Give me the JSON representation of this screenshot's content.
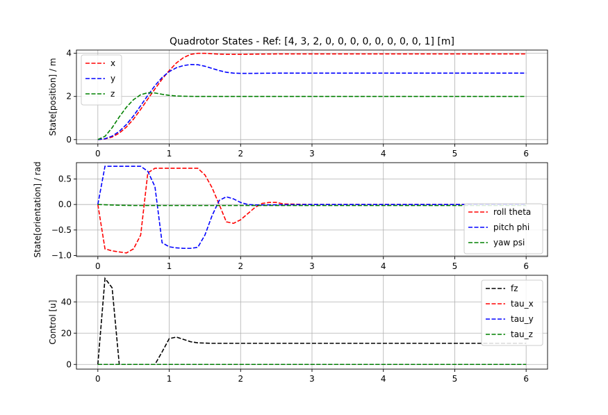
{
  "figure": {
    "title": "Quadrotor States - Ref: [4, 3, 2, 0, 0, 0, 0, 0, 0, 0, 0, 1] [m]"
  },
  "chart_data": [
    {
      "type": "line",
      "ylabel": "State[position] / m",
      "xlim": [
        -0.3,
        6.3
      ],
      "ylim": [
        -0.2,
        4.15
      ],
      "xticks": [
        0,
        1,
        2,
        3,
        4,
        5,
        6
      ],
      "yticks": [
        0,
        2,
        4
      ],
      "grid": true,
      "legend_position": "upper-left",
      "series": [
        {
          "name": "x",
          "color": "#ff0000",
          "x": [
            0,
            0.1,
            0.2,
            0.3,
            0.4,
            0.5,
            0.6,
            0.7,
            0.8,
            0.9,
            1.0,
            1.1,
            1.2,
            1.3,
            1.4,
            1.5,
            1.6,
            1.7,
            1.8,
            1.9,
            2.0,
            2.2,
            2.5,
            3.0,
            4.0,
            5.0,
            6.0
          ],
          "y": [
            0,
            0.03,
            0.12,
            0.3,
            0.58,
            0.95,
            1.4,
            1.88,
            2.35,
            2.8,
            3.2,
            3.55,
            3.8,
            3.95,
            4.0,
            4.0,
            3.98,
            3.96,
            3.95,
            3.95,
            3.95,
            3.96,
            3.97,
            3.97,
            3.97,
            3.97,
            3.97
          ]
        },
        {
          "name": "y",
          "color": "#0000ff",
          "x": [
            0,
            0.1,
            0.2,
            0.3,
            0.4,
            0.5,
            0.6,
            0.7,
            0.8,
            0.9,
            1.0,
            1.1,
            1.2,
            1.3,
            1.4,
            1.5,
            1.6,
            1.7,
            1.8,
            1.9,
            2.0,
            2.2,
            2.5,
            3.0,
            4.0,
            5.0,
            6.0
          ],
          "y": [
            0,
            0.04,
            0.16,
            0.38,
            0.7,
            1.1,
            1.57,
            2.05,
            2.5,
            2.88,
            3.15,
            3.33,
            3.43,
            3.48,
            3.47,
            3.4,
            3.3,
            3.2,
            3.12,
            3.08,
            3.07,
            3.07,
            3.08,
            3.08,
            3.08,
            3.08,
            3.08
          ]
        },
        {
          "name": "z",
          "color": "#008000",
          "x": [
            0,
            0.1,
            0.2,
            0.3,
            0.4,
            0.5,
            0.6,
            0.7,
            0.8,
            0.9,
            1.0,
            1.1,
            1.2,
            1.4,
            1.6,
            2.0,
            3.0,
            4.0,
            5.0,
            6.0
          ],
          "y": [
            0,
            0.15,
            0.55,
            1.05,
            1.5,
            1.85,
            2.08,
            2.17,
            2.16,
            2.1,
            2.05,
            2.02,
            2.01,
            2.0,
            2.0,
            2.0,
            2.0,
            2.0,
            2.0,
            2.0
          ]
        }
      ]
    },
    {
      "type": "line",
      "ylabel": "State[orientation] / rad",
      "xlim": [
        -0.3,
        6.3
      ],
      "ylim": [
        -1.02,
        0.82
      ],
      "xticks": [
        0,
        1,
        2,
        3,
        4,
        5,
        6
      ],
      "yticks": [
        0.5,
        0.0,
        -0.5,
        -1.0
      ],
      "ytick_labels": [
        "0.5",
        "0.0",
        "−0.5",
        "−1.0"
      ],
      "grid": true,
      "legend_position": "lower-right",
      "series": [
        {
          "name": "roll theta",
          "color": "#ff0000",
          "x": [
            0,
            0.1,
            0.2,
            0.3,
            0.4,
            0.5,
            0.6,
            0.7,
            0.8,
            0.9,
            1.0,
            1.1,
            1.2,
            1.3,
            1.4,
            1.5,
            1.6,
            1.7,
            1.8,
            1.9,
            2.0,
            2.1,
            2.2,
            2.3,
            2.4,
            2.5,
            2.6,
            3.0,
            4.0,
            5.0,
            6.0
          ],
          "y": [
            0,
            -0.87,
            -0.91,
            -0.93,
            -0.95,
            -0.87,
            -0.6,
            0.62,
            0.71,
            0.71,
            0.71,
            0.71,
            0.71,
            0.71,
            0.71,
            0.58,
            0.33,
            0.0,
            -0.34,
            -0.37,
            -0.3,
            -0.18,
            -0.06,
            0.02,
            0.04,
            0.04,
            0.01,
            0.0,
            0.0,
            0.0,
            0.0
          ]
        },
        {
          "name": "pitch phi",
          "color": "#0000ff",
          "x": [
            0,
            0.1,
            0.2,
            0.3,
            0.4,
            0.5,
            0.6,
            0.7,
            0.8,
            0.9,
            1.0,
            1.1,
            1.2,
            1.3,
            1.4,
            1.5,
            1.6,
            1.7,
            1.8,
            1.9,
            2.0,
            2.1,
            2.2,
            3.0,
            4.0,
            5.0,
            6.0
          ],
          "y": [
            0,
            0.75,
            0.75,
            0.75,
            0.75,
            0.75,
            0.75,
            0.65,
            0.35,
            -0.75,
            -0.83,
            -0.85,
            -0.86,
            -0.86,
            -0.84,
            -0.6,
            -0.22,
            0.08,
            0.15,
            0.11,
            0.04,
            0.0,
            -0.01,
            0.0,
            0.0,
            0.0,
            0.0
          ]
        },
        {
          "name": "yaw psi",
          "color": "#008000",
          "x": [
            0,
            0.1,
            0.2,
            0.3,
            0.5,
            0.8,
            1.0,
            2.0,
            3.0,
            4.0,
            5.0,
            6.0
          ],
          "y": [
            0,
            -0.005,
            -0.01,
            -0.015,
            -0.02,
            -0.02,
            -0.02,
            -0.02,
            -0.02,
            -0.02,
            -0.02,
            -0.02
          ]
        }
      ]
    },
    {
      "type": "line",
      "ylabel": "Control [u]",
      "xlim": [
        -0.3,
        6.3
      ],
      "ylim": [
        -3,
        57
      ],
      "xticks": [
        0,
        1,
        2,
        3,
        4,
        5,
        6
      ],
      "yticks": [
        0,
        20,
        40
      ],
      "grid": true,
      "legend_position": "upper-right",
      "series": [
        {
          "name": "fz",
          "color": "#000000",
          "x": [
            0,
            0.1,
            0.2,
            0.3,
            0.4,
            0.5,
            0.6,
            0.7,
            0.8,
            0.9,
            1.0,
            1.1,
            1.2,
            1.3,
            1.4,
            1.6,
            2.0,
            3.0,
            4.0,
            5.0,
            6.0
          ],
          "y": [
            0,
            55,
            49,
            0,
            0,
            0,
            0,
            0,
            0,
            8,
            16.5,
            17.5,
            16,
            14.5,
            13.8,
            13.5,
            13.5,
            13.5,
            13.5,
            13.5,
            13.5
          ]
        },
        {
          "name": "tau_x",
          "color": "#ff0000",
          "x": [
            0,
            6
          ],
          "y": [
            0,
            0
          ]
        },
        {
          "name": "tau_y",
          "color": "#0000ff",
          "x": [
            0,
            6
          ],
          "y": [
            0,
            0
          ]
        },
        {
          "name": "tau_z",
          "color": "#008000",
          "x": [
            0,
            6
          ],
          "y": [
            0,
            0
          ]
        }
      ]
    }
  ]
}
